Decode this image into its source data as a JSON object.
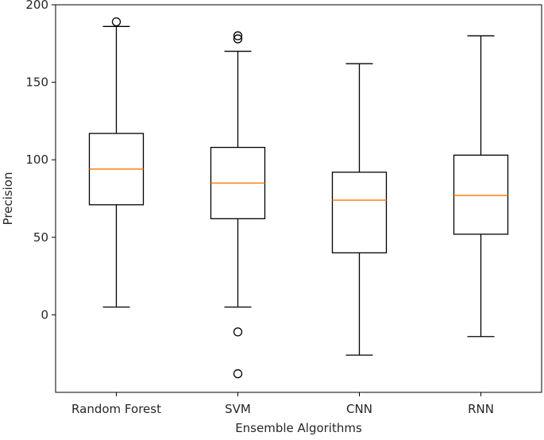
{
  "chart_data": {
    "type": "boxplot",
    "title": "",
    "xlabel": "Ensemble Algorithms",
    "ylabel": "Precision",
    "ylim": [
      -50,
      200
    ],
    "yticks": [
      0,
      50,
      100,
      150,
      200
    ],
    "grid": false,
    "colors": {
      "box": "#000000",
      "median": "#ff7f0e",
      "background": "#ffffff"
    },
    "series": [
      {
        "category": "Random Forest",
        "whisker_low": 5,
        "q1": 71,
        "median": 94,
        "q3": 117,
        "whisker_high": 186,
        "outliers": [
          189
        ]
      },
      {
        "category": "SVM",
        "whisker_low": 5,
        "q1": 62,
        "median": 85,
        "q3": 108,
        "whisker_high": 170,
        "outliers": [
          178,
          180,
          -11,
          -38
        ]
      },
      {
        "category": "CNN",
        "whisker_low": -26,
        "q1": 40,
        "median": 74,
        "q3": 92,
        "whisker_high": 162,
        "outliers": []
      },
      {
        "category": "RNN",
        "whisker_low": -14,
        "q1": 52,
        "median": 77,
        "q3": 103,
        "whisker_high": 180,
        "outliers": []
      }
    ]
  }
}
